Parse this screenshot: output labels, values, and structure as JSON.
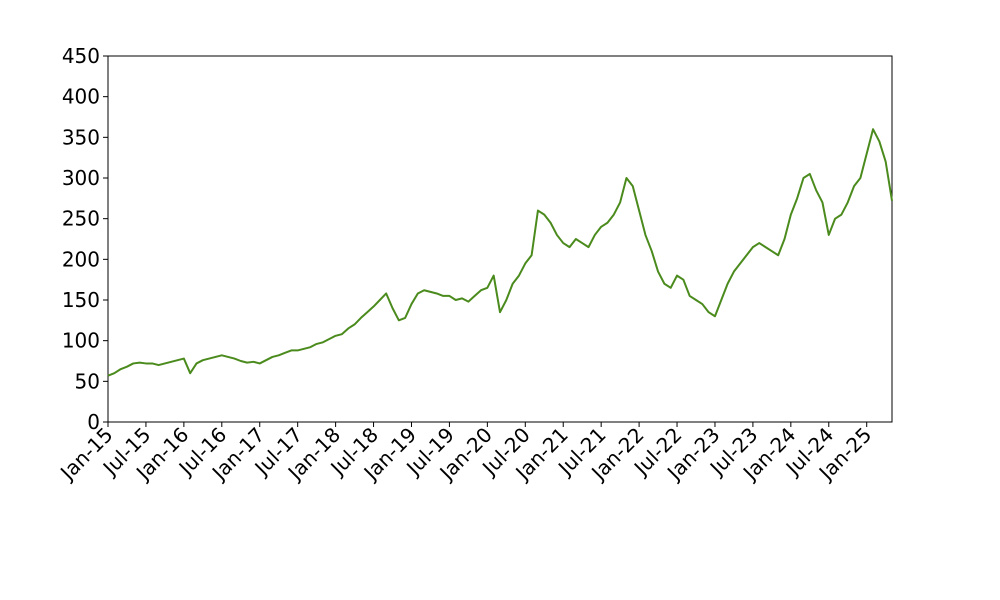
{
  "chart_data": {
    "type": "line",
    "x": [
      "2015-01",
      "2015-02",
      "2015-03",
      "2015-04",
      "2015-05",
      "2015-06",
      "2015-07",
      "2015-08",
      "2015-09",
      "2015-10",
      "2015-11",
      "2015-12",
      "2016-01",
      "2016-02",
      "2016-03",
      "2016-04",
      "2016-05",
      "2016-06",
      "2016-07",
      "2016-08",
      "2016-09",
      "2016-10",
      "2016-11",
      "2016-12",
      "2017-01",
      "2017-02",
      "2017-03",
      "2017-04",
      "2017-05",
      "2017-06",
      "2017-07",
      "2017-08",
      "2017-09",
      "2017-10",
      "2017-11",
      "2017-12",
      "2018-01",
      "2018-02",
      "2018-03",
      "2018-04",
      "2018-05",
      "2018-06",
      "2018-07",
      "2018-08",
      "2018-09",
      "2018-10",
      "2018-11",
      "2018-12",
      "2019-01",
      "2019-02",
      "2019-03",
      "2019-04",
      "2019-05",
      "2019-06",
      "2019-07",
      "2019-08",
      "2019-09",
      "2019-10",
      "2019-11",
      "2019-12",
      "2020-01",
      "2020-02",
      "2020-03",
      "2020-04",
      "2020-05",
      "2020-06",
      "2020-07",
      "2020-08",
      "2020-09",
      "2020-10",
      "2020-11",
      "2020-12",
      "2021-01",
      "2021-02",
      "2021-03",
      "2021-04",
      "2021-05",
      "2021-06",
      "2021-07",
      "2021-08",
      "2021-09",
      "2021-10",
      "2021-11",
      "2021-12",
      "2022-01",
      "2022-02",
      "2022-03",
      "2022-04",
      "2022-05",
      "2022-06",
      "2022-07",
      "2022-08",
      "2022-09",
      "2022-10",
      "2022-11",
      "2022-12",
      "2023-01",
      "2023-02",
      "2023-03",
      "2023-04",
      "2023-05",
      "2023-06",
      "2023-07",
      "2023-08",
      "2023-09",
      "2023-10",
      "2023-11",
      "2023-12",
      "2024-01",
      "2024-02",
      "2024-03",
      "2024-04",
      "2024-05",
      "2024-06",
      "2024-07",
      "2024-08",
      "2024-09",
      "2024-10",
      "2024-11",
      "2024-12",
      "2025-01",
      "2025-02",
      "2025-03",
      "2025-04",
      "2025-05"
    ],
    "series": [
      {
        "color": "#4b8b1d",
        "values": [
          57,
          60,
          65,
          68,
          72,
          73,
          72,
          72,
          70,
          72,
          74,
          76,
          78,
          60,
          72,
          76,
          78,
          80,
          82,
          80,
          78,
          75,
          73,
          74,
          72,
          76,
          80,
          82,
          85,
          88,
          88,
          90,
          92,
          96,
          98,
          102,
          106,
          108,
          115,
          120,
          128,
          135,
          142,
          150,
          158,
          140,
          125,
          128,
          145,
          158,
          162,
          160,
          158,
          155,
          155,
          150,
          152,
          148,
          155,
          162,
          165,
          180,
          135,
          150,
          170,
          180,
          195,
          205,
          260,
          255,
          245,
          230,
          220,
          215,
          225,
          220,
          215,
          230,
          240,
          245,
          255,
          270,
          300,
          290,
          260,
          230,
          210,
          185,
          170,
          165,
          180,
          175,
          155,
          150,
          145,
          135,
          130,
          150,
          170,
          185,
          195,
          205,
          215,
          220,
          215,
          210,
          205,
          225,
          255,
          275,
          300,
          305,
          285,
          270,
          230,
          250,
          255,
          270,
          290,
          300,
          330,
          360,
          345,
          320,
          272
        ]
      }
    ],
    "xlim": [
      "2015-01",
      "2025-05"
    ],
    "xticks": [
      {
        "value": "2015-01",
        "label": "Jan-15"
      },
      {
        "value": "2015-07",
        "label": "Jul-15"
      },
      {
        "value": "2016-01",
        "label": "Jan-16"
      },
      {
        "value": "2016-07",
        "label": "Jul-16"
      },
      {
        "value": "2017-01",
        "label": "Jan-17"
      },
      {
        "value": "2017-07",
        "label": "Jul-17"
      },
      {
        "value": "2018-01",
        "label": "Jan-18"
      },
      {
        "value": "2018-07",
        "label": "Jul-18"
      },
      {
        "value": "2019-01",
        "label": "Jan-19"
      },
      {
        "value": "2019-07",
        "label": "Jul-19"
      },
      {
        "value": "2020-01",
        "label": "Jan-20"
      },
      {
        "value": "2020-07",
        "label": "Jul-20"
      },
      {
        "value": "2021-01",
        "label": "Jan-21"
      },
      {
        "value": "2021-07",
        "label": "Jul-21"
      },
      {
        "value": "2022-01",
        "label": "Jan-22"
      },
      {
        "value": "2022-07",
        "label": "Jul-22"
      },
      {
        "value": "2023-01",
        "label": "Jan-23"
      },
      {
        "value": "2023-07",
        "label": "Jul-23"
      },
      {
        "value": "2024-01",
        "label": "Jan-24"
      },
      {
        "value": "2024-07",
        "label": "Jul-24"
      },
      {
        "value": "2025-01",
        "label": "Jan-25"
      }
    ],
    "ylim": [
      0,
      450
    ],
    "yticks": [
      0,
      50,
      100,
      150,
      200,
      250,
      300,
      350,
      400,
      450
    ],
    "grid": false
  }
}
